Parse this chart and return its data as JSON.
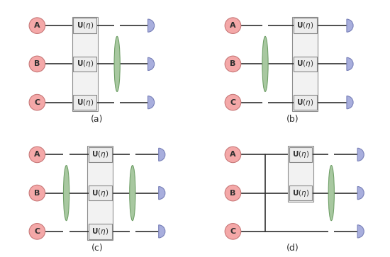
{
  "panels": [
    "(a)",
    "(b)",
    "(c)",
    "(d)"
  ],
  "pink_color": "#F4A8A8",
  "pink_edge": "#C87878",
  "green_color": "#A8C8A0",
  "green_edge": "#70A068",
  "blue_color": "#A8AEDD",
  "blue_edge": "#7880B8",
  "box_color": "#ECECEC",
  "box_edge": "#888888",
  "group_color": "#F2F2F2",
  "group_edge": "#909090",
  "line_color": "#303030",
  "bg_color": "#FFFFFF",
  "text_color": "#303030",
  "label_fontsize": 8,
  "panel_fontsize": 9,
  "u_fontsize": 7.5,
  "lw": 1.2
}
